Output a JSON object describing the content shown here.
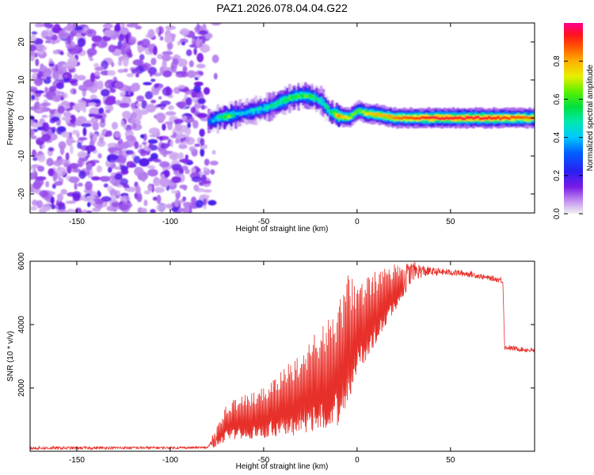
{
  "chart_data": [
    {
      "type": "heatmap",
      "title": "PAZ1.2026.078.04.04.G22",
      "xlabel": "Height of straight line (km)",
      "ylabel": "Frequency (Hz)",
      "xlim": [
        -175,
        95
      ],
      "ylim": [
        -25,
        25
      ],
      "xticks": [
        -150,
        -100,
        -50,
        0,
        50
      ],
      "yticks": [
        -20,
        -10,
        0,
        10,
        20
      ],
      "noise_region_x": [
        -175,
        -80
      ],
      "ridge": {
        "x": [
          -80,
          -75,
          -70,
          -65,
          -60,
          -55,
          -50,
          -45,
          -40,
          -35,
          -30,
          -25,
          -20,
          -15,
          -10,
          -5,
          0,
          5,
          10,
          15,
          20,
          30,
          40,
          50,
          60,
          70,
          80,
          95
        ],
        "freq": [
          -1,
          0,
          0.5,
          1,
          1.5,
          2,
          2.5,
          3.5,
          4.5,
          5.5,
          6,
          5.5,
          4.5,
          1.5,
          0.5,
          0,
          2,
          1,
          1,
          0.5,
          0,
          0,
          0,
          0,
          0,
          0,
          0,
          0
        ],
        "amp": [
          0.35,
          0.45,
          0.65,
          0.4,
          0.4,
          0.45,
          0.45,
          0.5,
          0.55,
          0.55,
          0.6,
          0.55,
          0.5,
          0.5,
          0.8,
          0.7,
          0.6,
          0.75,
          0.8,
          0.8,
          0.85,
          0.9,
          0.95,
          0.95,
          0.95,
          0.95,
          0.9,
          0.85
        ]
      },
      "colorbar": {
        "label": "Normalized spectral amplitude",
        "range": [
          0,
          1
        ],
        "ticks": [
          "0.0",
          "0.2",
          "0.4",
          "0.6",
          "0.8"
        ],
        "tick_values": [
          0,
          0.2,
          0.4,
          0.6,
          0.8
        ]
      }
    },
    {
      "type": "line",
      "xlabel": "Height of straight line (km)",
      "ylabel": "SNR (10 * v/v)",
      "xlim": [
        -175,
        95
      ],
      "ylim": [
        0,
        6000
      ],
      "xticks": [
        -150,
        -100,
        -50,
        0,
        50
      ],
      "yticks": [
        2000,
        4000,
        6000
      ],
      "color": "#e8302a",
      "series": [
        {
          "name": "SNR",
          "envelope": {
            "x": [
              -175,
              -80,
              -75,
              -70,
              -60,
              -50,
              -40,
              -30,
              -20,
              -10,
              -5,
              0,
              10,
              20,
              30,
              40,
              50,
              60,
              70,
              78,
              79,
              80,
              95
            ],
            "low": [
              50,
              80,
              150,
              350,
              400,
              400,
              500,
              500,
              700,
              800,
              1500,
              2400,
              3400,
              4400,
              5400,
              5550,
              5550,
              5500,
              5400,
              5300,
              3200,
              3200,
              3100
            ],
            "high": [
              150,
              150,
              800,
              1500,
              1800,
              2000,
              2600,
              3200,
              3900,
              4600,
              5600,
              5300,
              5700,
              5900,
              6000,
              5800,
              5750,
              5700,
              5550,
              5500,
              3300,
              3350,
              3250
            ]
          }
        }
      ]
    }
  ]
}
